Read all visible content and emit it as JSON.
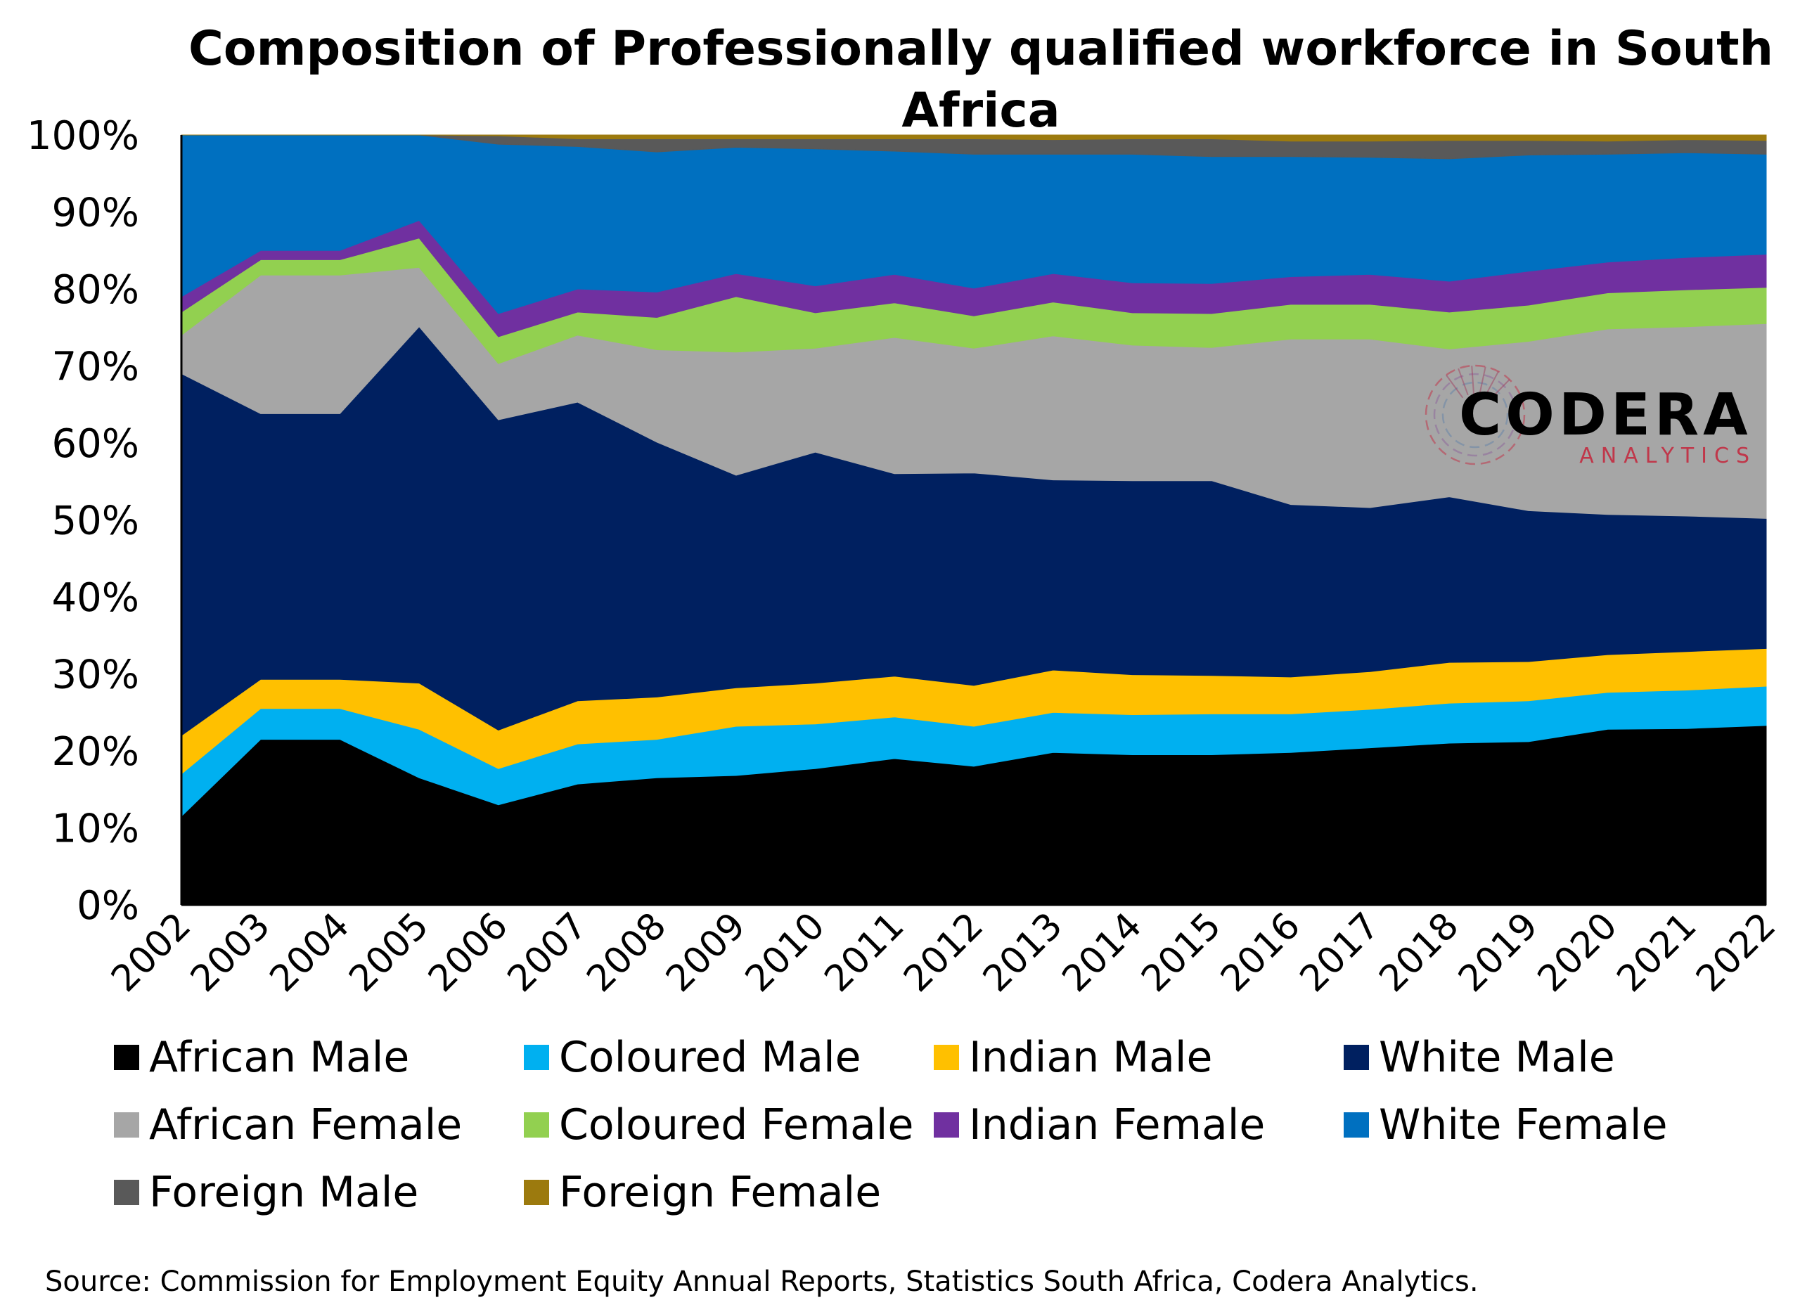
{
  "chart_data": {
    "type": "area",
    "stacked": true,
    "title": "Composition of Professionally qualified workforce in South Africa",
    "categories": [
      "2002",
      "2003",
      "2004",
      "2005",
      "2006",
      "2007",
      "2008",
      "2009",
      "2010",
      "2011",
      "2012",
      "2013",
      "2014",
      "2015",
      "2016",
      "2017",
      "2018",
      "2019",
      "2020",
      "2021",
      "2022"
    ],
    "y_ticks": [
      "0%",
      "10%",
      "20%",
      "30%",
      "40%",
      "50%",
      "60%",
      "70%",
      "80%",
      "90%",
      "100%"
    ],
    "ylim": [
      0,
      100
    ],
    "y_unit": "%",
    "legend_position": "bottom",
    "grid": false,
    "source": "Source: Commission for Employment Equity Annual Reports, Statistics South Africa, Codera Analytics.",
    "series": [
      {
        "name": "African Male",
        "color": "#000000",
        "values": [
          11.5,
          21.5,
          21.5,
          16.5,
          13.0,
          15.7,
          16.5,
          16.8,
          17.7,
          19.0,
          18.0,
          19.8,
          19.5,
          19.5,
          19.8,
          20.4,
          21.0,
          21.2,
          22.8,
          22.9,
          23.3
        ]
      },
      {
        "name": "Coloured Male",
        "color": "#00b0f0",
        "values": [
          5.5,
          4.0,
          4.0,
          6.3,
          4.7,
          5.2,
          5.0,
          6.4,
          5.8,
          5.4,
          5.2,
          5.2,
          5.2,
          5.3,
          5.0,
          5.0,
          5.2,
          5.3,
          4.8,
          5.0,
          5.1
        ]
      },
      {
        "name": "Indian Male",
        "color": "#ffc000",
        "values": [
          5.0,
          3.8,
          3.8,
          6.0,
          5.0,
          5.6,
          5.5,
          5.0,
          5.3,
          5.3,
          5.3,
          5.5,
          5.2,
          5.0,
          4.8,
          4.9,
          5.3,
          5.1,
          4.9,
          5.0,
          4.9
        ]
      },
      {
        "name": "White Male",
        "color": "#002060",
        "values": [
          47.0,
          34.5,
          34.5,
          46.3,
          40.3,
          38.8,
          33.1,
          27.6,
          30.0,
          26.3,
          27.6,
          24.7,
          25.2,
          25.3,
          22.4,
          21.3,
          21.5,
          19.6,
          18.2,
          17.6,
          16.9
        ]
      },
      {
        "name": "African Female",
        "color": "#a6a6a6",
        "values": [
          5.0,
          18.0,
          18.0,
          7.7,
          7.3,
          8.7,
          12.0,
          16.0,
          13.5,
          17.7,
          16.2,
          18.7,
          17.6,
          17.3,
          21.5,
          21.9,
          19.2,
          22.0,
          24.1,
          24.6,
          25.3
        ]
      },
      {
        "name": "Coloured Female",
        "color": "#92d050",
        "values": [
          3.0,
          2.0,
          2.0,
          3.8,
          3.5,
          3.0,
          4.2,
          7.2,
          4.6,
          4.5,
          4.2,
          4.4,
          4.2,
          4.4,
          4.5,
          4.5,
          4.8,
          4.7,
          4.7,
          4.8,
          4.7
        ]
      },
      {
        "name": "Indian Female",
        "color": "#7030a0",
        "values": [
          2.0,
          1.2,
          1.2,
          2.3,
          3.0,
          3.0,
          3.3,
          3.0,
          3.5,
          3.7,
          3.6,
          3.7,
          3.9,
          3.9,
          3.6,
          3.9,
          4.0,
          4.4,
          4.0,
          4.2,
          4.3
        ]
      },
      {
        "name": "White Female",
        "color": "#0070c0",
        "values": [
          21.0,
          15.0,
          15.0,
          11.1,
          22.0,
          18.5,
          18.2,
          16.4,
          17.8,
          16.0,
          17.4,
          15.5,
          16.7,
          16.5,
          15.6,
          15.2,
          15.9,
          15.1,
          14.0,
          13.6,
          13.0
        ]
      },
      {
        "name": "Foreign Male",
        "color": "#595959",
        "values": [
          0.0,
          0.0,
          0.0,
          0.0,
          1.1,
          1.0,
          1.7,
          1.1,
          1.3,
          1.6,
          2.0,
          1.9,
          2.0,
          2.3,
          2.0,
          2.1,
          2.4,
          1.9,
          1.7,
          1.7,
          1.8
        ]
      },
      {
        "name": "Foreign Female",
        "color": "#9c7a0e",
        "values": [
          0.0,
          0.0,
          0.0,
          0.0,
          0.1,
          0.5,
          0.5,
          0.5,
          0.5,
          0.5,
          0.5,
          0.6,
          0.5,
          0.5,
          0.8,
          0.8,
          0.7,
          0.7,
          0.8,
          0.6,
          0.7
        ]
      }
    ]
  },
  "logo": {
    "name": "CODERA",
    "tagline": "ANALYTICS",
    "icon": "circuit-circle-icon",
    "text_color": "#000000",
    "tagline_color": "#c0374a"
  }
}
